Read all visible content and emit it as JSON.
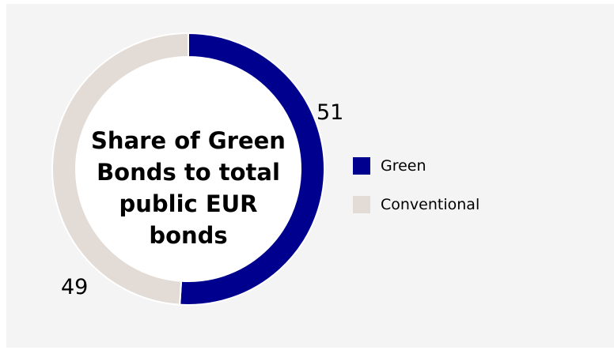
{
  "chart_data": {
    "type": "pie",
    "variant": "donut",
    "title_lines": [
      "Share of Green",
      "Bonds to total",
      "public EUR",
      "bonds"
    ],
    "categories": [
      "Green",
      "Conventional"
    ],
    "values": [
      51,
      49
    ],
    "data_labels": [
      "51",
      "49"
    ],
    "colors": [
      "#00008f",
      "#e3dcd6"
    ],
    "legend": {
      "placement": "right",
      "entries": [
        "Green",
        "Conventional"
      ]
    }
  }
}
